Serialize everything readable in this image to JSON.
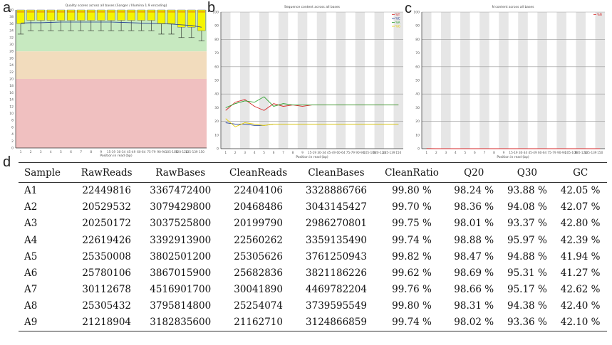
{
  "panel_labels": [
    "a",
    "b",
    "c",
    "d"
  ],
  "chart_data": [
    {
      "type": "line",
      "panel": "a",
      "title": "Quality scores across all bases (Sanger / Illumina 1.9 encoding)",
      "xlabel": "Position in read (bp)",
      "ylabel": "",
      "ylim": [
        0,
        40
      ],
      "yticks": [
        0,
        2,
        4,
        6,
        8,
        10,
        12,
        14,
        16,
        18,
        20,
        22,
        24,
        26,
        28,
        30,
        32,
        34,
        36,
        38,
        40
      ],
      "xticks": [
        "1",
        "2",
        "3",
        "4",
        "5",
        "6",
        "7",
        "8",
        "9",
        "15-19",
        "30-34",
        "45-49",
        "60-64",
        "75-79",
        "90-94",
        "105-109",
        "120-124",
        "135-139",
        "150"
      ],
      "zones": [
        {
          "name": "good",
          "from": 28,
          "to": 40,
          "color": "#c7e9c0"
        },
        {
          "name": "reasonable",
          "from": 20,
          "to": 28,
          "color": "#f2dcbd"
        },
        {
          "name": "poor",
          "from": 0,
          "to": 20,
          "color": "#f0c0c0"
        }
      ],
      "box_color": "#f5f500",
      "series": [
        {
          "name": "mean",
          "values": [
            36.2,
            36.3,
            36.3,
            36.4,
            36.5,
            36.5,
            36.5,
            36.5,
            36.5,
            36.5,
            36.4,
            36.3,
            36.2,
            36.1,
            36.0,
            35.9,
            35.7,
            35.5,
            35.0
          ]
        },
        {
          "name": "box_low",
          "values": [
            36,
            37,
            37,
            37,
            37,
            37,
            37,
            37,
            37,
            37,
            37,
            37,
            37,
            37,
            36,
            36,
            35,
            35,
            34
          ]
        },
        {
          "name": "whisker_low",
          "values": [
            33,
            34,
            34,
            34,
            34,
            34,
            34,
            34,
            34,
            34,
            34,
            34,
            34,
            34,
            33,
            33,
            32,
            32,
            31
          ]
        }
      ]
    },
    {
      "type": "line",
      "panel": "b",
      "title": "Sequence content across all bases",
      "xlabel": "Position in read (bp)",
      "ylim": [
        0,
        100
      ],
      "yticks": [
        0,
        10,
        20,
        30,
        40,
        50,
        60,
        70,
        80,
        90,
        100
      ],
      "xticks": [
        "1",
        "2",
        "3",
        "4",
        "5",
        "6",
        "7",
        "8",
        "9",
        "15-19",
        "30-34",
        "45-49",
        "60-64",
        "75-79",
        "90-94",
        "105-109",
        "120-124",
        "135-139",
        "150"
      ],
      "legend": [
        "%T",
        "%C",
        "%A",
        "%G"
      ],
      "series": [
        {
          "name": "%T",
          "color": "#d62728",
          "values": [
            28,
            34,
            36,
            31,
            28,
            33,
            31,
            32,
            31,
            32,
            32,
            32,
            32,
            32,
            32,
            32,
            32,
            32,
            32
          ]
        },
        {
          "name": "%A",
          "color": "#2ca02c",
          "values": [
            30,
            33,
            35,
            34,
            38,
            31,
            33,
            32,
            32,
            32,
            32,
            32,
            32,
            32,
            32,
            32,
            32,
            32,
            32
          ]
        },
        {
          "name": "%C",
          "color": "#1f3a93",
          "values": [
            19,
            18,
            18,
            17,
            17,
            18,
            18,
            18,
            18,
            18,
            18,
            18,
            18,
            18,
            18,
            18,
            18,
            18,
            18
          ]
        },
        {
          "name": "%G",
          "color": "#e8d000",
          "values": [
            22,
            16,
            19,
            18,
            17,
            18,
            18,
            18,
            18,
            18,
            18,
            18,
            18,
            18,
            18,
            18,
            18,
            18,
            18
          ]
        }
      ]
    },
    {
      "type": "line",
      "panel": "c",
      "title": "N content across all bases",
      "xlabel": "Position in read (bp)",
      "ylim": [
        0,
        100
      ],
      "yticks": [
        0,
        10,
        20,
        30,
        40,
        50,
        60,
        70,
        80,
        90,
        100
      ],
      "xticks": [
        "1",
        "2",
        "3",
        "4",
        "5",
        "6",
        "7",
        "8",
        "9",
        "15-19",
        "30-34",
        "45-49",
        "60-64",
        "75-79",
        "90-94",
        "105-109",
        "120-124",
        "135-139",
        "150"
      ],
      "legend": [
        "%N"
      ],
      "series": [
        {
          "name": "%N",
          "color": "#d62728",
          "values": [
            0.1,
            0,
            0,
            0,
            0,
            0,
            0,
            0,
            0,
            0,
            0,
            0,
            0,
            0,
            0,
            0,
            0,
            0,
            0
          ]
        }
      ]
    }
  ],
  "table": {
    "headers": [
      "Sample",
      "RawReads",
      "RawBases",
      "CleanReads",
      "CleanBases",
      "CleanRatio",
      "Q20",
      "Q30",
      "GC"
    ],
    "rows": [
      [
        "A1",
        "22449816",
        "3367472400",
        "22404106",
        "3328886766",
        "99.80 %",
        "98.24 %",
        "93.88 %",
        "42.05 %"
      ],
      [
        "A2",
        "20529532",
        "3079429800",
        "20468486",
        "3043145427",
        "99.70 %",
        "98.36 %",
        "94.08 %",
        "42.07 %"
      ],
      [
        "A3",
        "20250172",
        "3037525800",
        "20199790",
        "2986270801",
        "99.75 %",
        "98.01 %",
        "93.37 %",
        "42.80 %"
      ],
      [
        "A4",
        "22619426",
        "3392913900",
        "22560262",
        "3359135490",
        "99.74 %",
        "98.88 %",
        "95.97 %",
        "42.39 %"
      ],
      [
        "A5",
        "25350008",
        "3802501200",
        "25305626",
        "3761250943",
        "99.82 %",
        "98.47 %",
        "94.88 %",
        "41.94 %"
      ],
      [
        "A6",
        "25780106",
        "3867015900",
        "25682836",
        "3821186226",
        "99.62 %",
        "98.69 %",
        "95.31 %",
        "41.27 %"
      ],
      [
        "A7",
        "30112678",
        "4516901700",
        "30041890",
        "4469782204",
        "99.76 %",
        "98.66 %",
        "95.17 %",
        "42.62 %"
      ],
      [
        "A8",
        "25305432",
        "3795814800",
        "25254074",
        "3739595549",
        "99.80 %",
        "98.31 %",
        "94.38 %",
        "42.40 %"
      ],
      [
        "A9",
        "21218904",
        "3182835600",
        "21162710",
        "3124866859",
        "99.74 %",
        "98.02 %",
        "93.36 %",
        "42.10 %"
      ]
    ]
  }
}
